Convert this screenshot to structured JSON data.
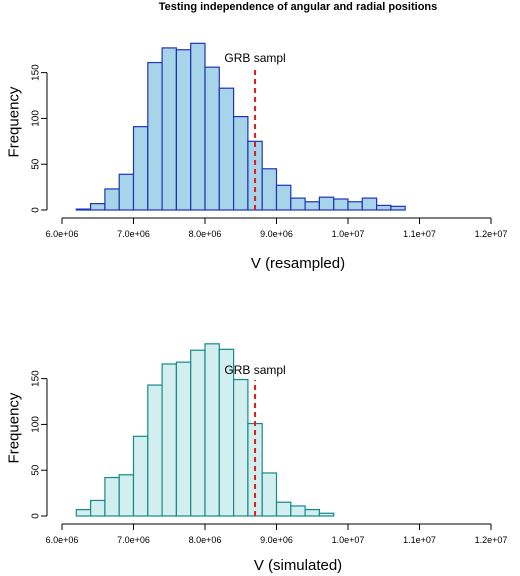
{
  "figure": {
    "title": "Testing independence of angular and radial positions"
  },
  "chart_data": [
    {
      "type": "bar",
      "ylabel": "Frequency",
      "xlabel": "V (resampled)",
      "xlim": [
        6000000,
        12000000
      ],
      "ylim": [
        0,
        190
      ],
      "xticks": [
        6000000,
        7000000,
        8000000,
        9000000,
        10000000,
        11000000,
        12000000
      ],
      "xtick_labels": [
        "6.0e+06",
        "7.0e+06",
        "8.0e+06",
        "9.0e+06",
        "1.0e+07",
        "1.1e+07",
        "1.2e+07"
      ],
      "yticks": [
        0,
        50,
        100,
        150
      ],
      "ytick_labels": [
        "0",
        "50",
        "100",
        "150"
      ],
      "bin_start": 6200000,
      "bin_width": 200000,
      "values": [
        1,
        7,
        23,
        39,
        91,
        161,
        177,
        175,
        182,
        156,
        133,
        102,
        75,
        45,
        27,
        13,
        9,
        14,
        12,
        9,
        13,
        5,
        4
      ],
      "fill_color": "#a8d4ea",
      "edge_color": "#1d34b8",
      "reference_line": {
        "x": 8700000,
        "label": "GRB sampl",
        "color": "#e31a1c"
      }
    },
    {
      "type": "bar",
      "ylabel": "Frequency",
      "xlabel": "V (simulated)",
      "xlim": [
        6000000,
        12000000
      ],
      "ylim": [
        0,
        190
      ],
      "xticks": [
        6000000,
        7000000,
        8000000,
        9000000,
        10000000,
        11000000,
        12000000
      ],
      "xtick_labels": [
        "6.0e+06",
        "7.0e+06",
        "8.0e+06",
        "9.0e+06",
        "1.0e+07",
        "1.1e+07",
        "1.2e+07"
      ],
      "yticks": [
        0,
        50,
        100,
        150
      ],
      "ytick_labels": [
        "0",
        "50",
        "100",
        "150"
      ],
      "bin_start": 6200000,
      "bin_width": 200000,
      "values": [
        7,
        17,
        42,
        45,
        87,
        143,
        166,
        168,
        181,
        188,
        182,
        149,
        101,
        47,
        15,
        11,
        7,
        3
      ],
      "fill_color": "#d3eeee",
      "edge_color": "#148a8a",
      "reference_line": {
        "x": 8700000,
        "label": "GRB sampl",
        "color": "#e31a1c"
      }
    }
  ]
}
